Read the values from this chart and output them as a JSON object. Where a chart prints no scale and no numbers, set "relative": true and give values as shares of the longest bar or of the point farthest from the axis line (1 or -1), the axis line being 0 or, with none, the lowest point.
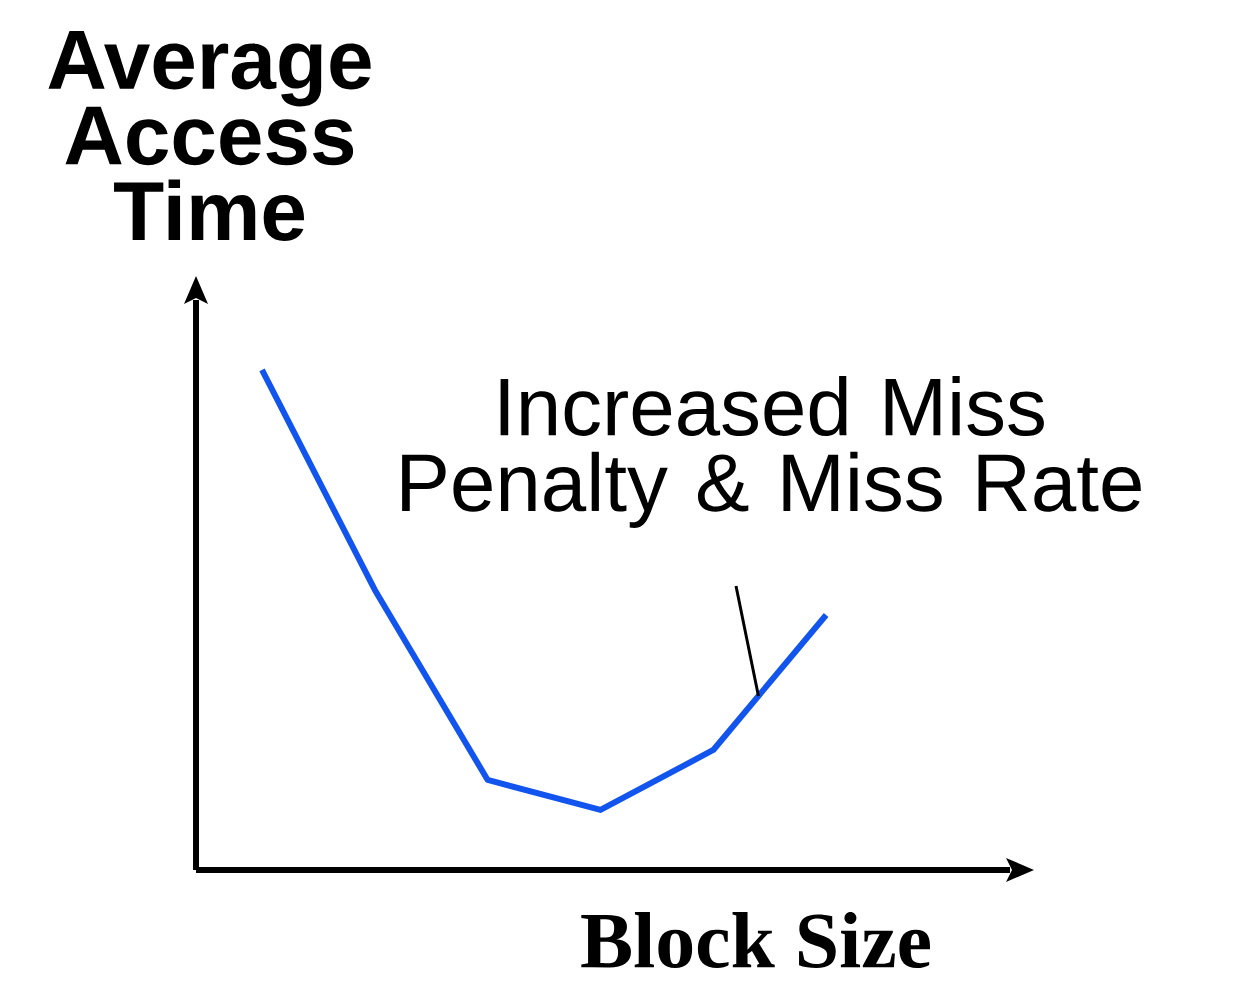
{
  "chart_data": {
    "type": "line",
    "relative": true,
    "xlabel": "Block Size",
    "ylabel": "Average Access Time",
    "categories": [
      null,
      null,
      null,
      null,
      null,
      null
    ],
    "series": [
      {
        "color": "#1155ee",
        "values": [
          1,
          0.56,
          0.18,
          0.12,
          0.24,
          0.51
        ]
      }
    ],
    "annotations": [
      "Increased Miss Penalty & Miss Rate"
    ],
    "marker": "none",
    "line_style": "solid",
    "grid": false,
    "legend": false
  }
}
